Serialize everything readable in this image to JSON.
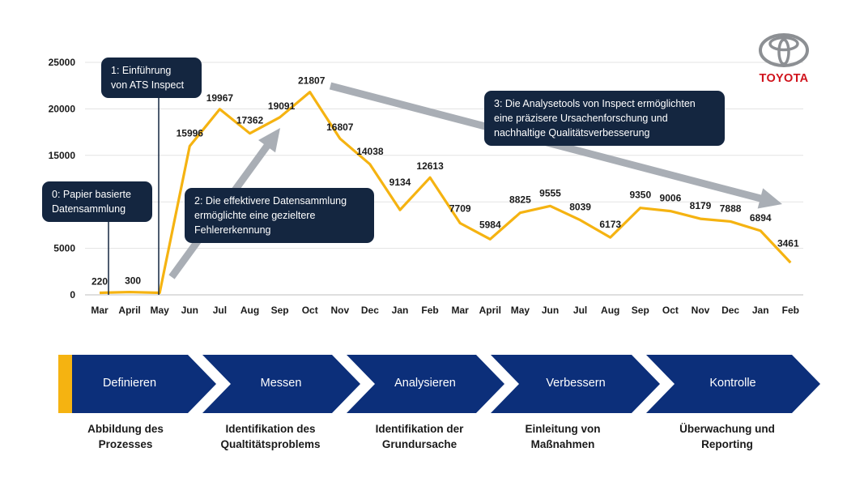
{
  "chart_data": {
    "type": "line",
    "categories": [
      "Mar",
      "April",
      "May",
      "Jun",
      "Jul",
      "Aug",
      "Sep",
      "Oct",
      "Nov",
      "Dec",
      "Jan",
      "Feb",
      "Mar",
      "April",
      "May",
      "Jun",
      "Jul",
      "Aug",
      "Sep",
      "Oct",
      "Nov",
      "Dec",
      "Jan",
      "Feb"
    ],
    "values": [
      220,
      300,
      null,
      15996,
      19967,
      17362,
      19091,
      21807,
      16807,
      14038,
      9134,
      12613,
      7709,
      5984,
      8825,
      9555,
      8039,
      6173,
      9350,
      9006,
      8179,
      7888,
      6894,
      3461
    ],
    "line_values": [
      220,
      300,
      220,
      15996,
      19967,
      17362,
      19091,
      21807,
      16807,
      14038,
      9134,
      12613,
      7709,
      5984,
      8825,
      9555,
      8039,
      6173,
      9350,
      9006,
      8179,
      7888,
      6894,
      3461
    ],
    "yticks": [
      0,
      5000,
      10000,
      15000,
      20000,
      25000
    ],
    "ylim": [
      0,
      25000
    ],
    "grid": true,
    "line_color": "#f5b311",
    "arrow_color": "#a9aeb5",
    "annotations": [
      {
        "id": "a0",
        "text": "0: Papier basierte Datensammlung"
      },
      {
        "id": "a1",
        "text": "1: Einführung von ATS Inspect"
      },
      {
        "id": "a2",
        "text": "2: Die effektivere Datensammlung ermöglichte eine gezieltere Fehlererkennung"
      },
      {
        "id": "a3",
        "text": "3: Die Analysetools von Inspect ermöglichten eine präzisere Ursachenforschung und nachhaltige Qualitätsverbesserung"
      }
    ]
  },
  "callouts": {
    "c0": [
      "0: Papier basierte",
      "Datensammlung"
    ],
    "c1": [
      "1: Einführung",
      "von ATS Inspect"
    ],
    "c2": [
      "2: Die effektivere Datensammlung",
      "ermöglichte eine gezieltere",
      "Fehlererkennung"
    ],
    "c3": [
      "3: Die Analysetools von Inspect ermöglichten",
      "eine präzisere Ursachenforschung und",
      "nachhaltige Qualitätsverbesserung"
    ]
  },
  "logo": {
    "text": "TOYOTA",
    "color": "#d0121b"
  },
  "process": {
    "color": "#0c2f7a",
    "stripe_color": "#f5b311",
    "steps": [
      {
        "label": "Definieren",
        "desc": [
          "Abbildung des",
          "Prozesses"
        ]
      },
      {
        "label": "Messen",
        "desc": [
          "Identifikation des",
          "Qualtitätsproblems"
        ]
      },
      {
        "label": "Analysieren",
        "desc": [
          "Identifikation der",
          "Grundursache"
        ]
      },
      {
        "label": "Verbessern",
        "desc": [
          "Einleitung von",
          "Maßnahmen"
        ]
      },
      {
        "label": "Kontrolle",
        "desc": [
          "Überwachung und",
          "Reporting"
        ]
      }
    ]
  }
}
